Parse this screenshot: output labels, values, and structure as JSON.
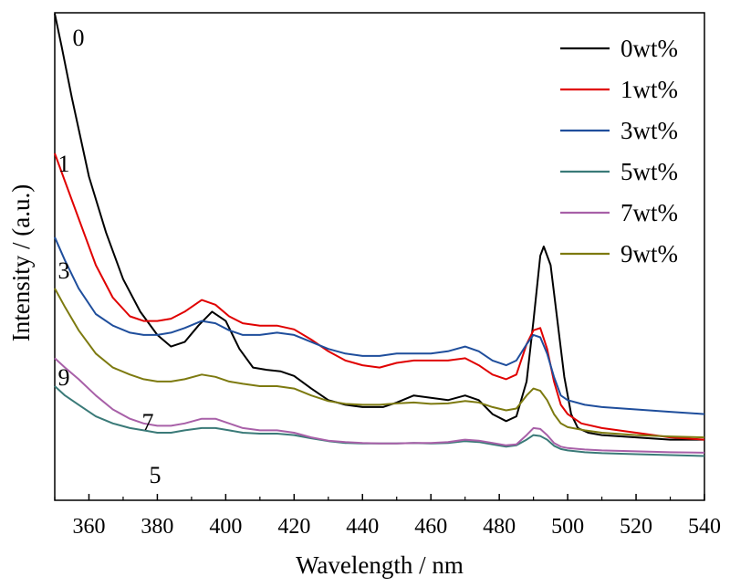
{
  "chart_data": {
    "type": "line",
    "title": "",
    "xlabel": "Wavelength / nm",
    "ylabel": "Intensity / (a.u.)",
    "xlim": [
      350,
      540
    ],
    "ylim": [
      0,
      1
    ],
    "x_ticks": [
      360,
      380,
      400,
      420,
      440,
      460,
      480,
      500,
      520,
      540
    ],
    "y_ticks_shown": false,
    "grid": false,
    "legend_position": "top-right",
    "series": [
      {
        "name": "0wt%",
        "label": "0",
        "color": "#000000",
        "points": [
          [
            350,
            1.0
          ],
          [
            352,
            0.93
          ],
          [
            355,
            0.82
          ],
          [
            360,
            0.65
          ],
          [
            365,
            0.53
          ],
          [
            370,
            0.43
          ],
          [
            375,
            0.36
          ],
          [
            380,
            0.31
          ],
          [
            384,
            0.285
          ],
          [
            388,
            0.295
          ],
          [
            392,
            0.33
          ],
          [
            396,
            0.36
          ],
          [
            400,
            0.34
          ],
          [
            404,
            0.28
          ],
          [
            408,
            0.24
          ],
          [
            412,
            0.235
          ],
          [
            416,
            0.232
          ],
          [
            420,
            0.222
          ],
          [
            425,
            0.195
          ],
          [
            430,
            0.17
          ],
          [
            435,
            0.16
          ],
          [
            440,
            0.155
          ],
          [
            446,
            0.155
          ],
          [
            450,
            0.165
          ],
          [
            455,
            0.18
          ],
          [
            460,
            0.175
          ],
          [
            465,
            0.17
          ],
          [
            470,
            0.18
          ],
          [
            474,
            0.17
          ],
          [
            478,
            0.14
          ],
          [
            482,
            0.125
          ],
          [
            485,
            0.135
          ],
          [
            488,
            0.21
          ],
          [
            490,
            0.34
          ],
          [
            492,
            0.48
          ],
          [
            493,
            0.5
          ],
          [
            495,
            0.46
          ],
          [
            497,
            0.34
          ],
          [
            499,
            0.22
          ],
          [
            501,
            0.14
          ],
          [
            503,
            0.11
          ],
          [
            506,
            0.1
          ],
          [
            510,
            0.095
          ],
          [
            520,
            0.09
          ],
          [
            530,
            0.085
          ],
          [
            540,
            0.085
          ]
        ]
      },
      {
        "name": "1wt%",
        "label": "1",
        "color": "#e00000",
        "points": [
          [
            350,
            0.7
          ],
          [
            353,
            0.64
          ],
          [
            357,
            0.56
          ],
          [
            362,
            0.46
          ],
          [
            367,
            0.39
          ],
          [
            372,
            0.35
          ],
          [
            376,
            0.34
          ],
          [
            380,
            0.34
          ],
          [
            384,
            0.345
          ],
          [
            388,
            0.36
          ],
          [
            393,
            0.385
          ],
          [
            397,
            0.375
          ],
          [
            401,
            0.35
          ],
          [
            405,
            0.335
          ],
          [
            410,
            0.33
          ],
          [
            415,
            0.33
          ],
          [
            420,
            0.322
          ],
          [
            425,
            0.3
          ],
          [
            430,
            0.275
          ],
          [
            435,
            0.255
          ],
          [
            440,
            0.245
          ],
          [
            445,
            0.24
          ],
          [
            450,
            0.25
          ],
          [
            455,
            0.255
          ],
          [
            460,
            0.255
          ],
          [
            465,
            0.255
          ],
          [
            470,
            0.26
          ],
          [
            474,
            0.245
          ],
          [
            478,
            0.225
          ],
          [
            482,
            0.215
          ],
          [
            485,
            0.225
          ],
          [
            488,
            0.29
          ],
          [
            490,
            0.32
          ],
          [
            492,
            0.325
          ],
          [
            494,
            0.28
          ],
          [
            496,
            0.21
          ],
          [
            498,
            0.16
          ],
          [
            500,
            0.14
          ],
          [
            504,
            0.12
          ],
          [
            510,
            0.11
          ],
          [
            520,
            0.1
          ],
          [
            530,
            0.09
          ],
          [
            540,
            0.085
          ]
        ]
      },
      {
        "name": "3wt%",
        "label": "3",
        "color": "#1f4e9c",
        "points": [
          [
            350,
            0.52
          ],
          [
            353,
            0.47
          ],
          [
            357,
            0.41
          ],
          [
            362,
            0.355
          ],
          [
            367,
            0.33
          ],
          [
            372,
            0.315
          ],
          [
            376,
            0.31
          ],
          [
            380,
            0.31
          ],
          [
            384,
            0.315
          ],
          [
            388,
            0.325
          ],
          [
            393,
            0.34
          ],
          [
            397,
            0.335
          ],
          [
            401,
            0.32
          ],
          [
            405,
            0.31
          ],
          [
            410,
            0.31
          ],
          [
            415,
            0.315
          ],
          [
            420,
            0.31
          ],
          [
            425,
            0.295
          ],
          [
            430,
            0.28
          ],
          [
            435,
            0.27
          ],
          [
            440,
            0.265
          ],
          [
            445,
            0.265
          ],
          [
            450,
            0.27
          ],
          [
            455,
            0.27
          ],
          [
            460,
            0.27
          ],
          [
            465,
            0.275
          ],
          [
            470,
            0.285
          ],
          [
            474,
            0.275
          ],
          [
            478,
            0.255
          ],
          [
            482,
            0.245
          ],
          [
            485,
            0.255
          ],
          [
            488,
            0.29
          ],
          [
            490,
            0.31
          ],
          [
            492,
            0.305
          ],
          [
            494,
            0.27
          ],
          [
            496,
            0.22
          ],
          [
            498,
            0.18
          ],
          [
            500,
            0.17
          ],
          [
            505,
            0.16
          ],
          [
            510,
            0.155
          ],
          [
            520,
            0.15
          ],
          [
            530,
            0.145
          ],
          [
            540,
            0.14
          ]
        ]
      },
      {
        "name": "5wt%",
        "label": "5",
        "color": "#3a7a78",
        "points": [
          [
            350,
            0.2
          ],
          [
            353,
            0.18
          ],
          [
            357,
            0.16
          ],
          [
            362,
            0.135
          ],
          [
            367,
            0.12
          ],
          [
            372,
            0.11
          ],
          [
            376,
            0.105
          ],
          [
            380,
            0.1
          ],
          [
            384,
            0.1
          ],
          [
            388,
            0.105
          ],
          [
            393,
            0.11
          ],
          [
            397,
            0.11
          ],
          [
            401,
            0.105
          ],
          [
            405,
            0.1
          ],
          [
            410,
            0.098
          ],
          [
            415,
            0.098
          ],
          [
            420,
            0.095
          ],
          [
            425,
            0.088
          ],
          [
            430,
            0.082
          ],
          [
            435,
            0.078
          ],
          [
            440,
            0.077
          ],
          [
            445,
            0.077
          ],
          [
            450,
            0.077
          ],
          [
            455,
            0.078
          ],
          [
            460,
            0.077
          ],
          [
            465,
            0.078
          ],
          [
            470,
            0.082
          ],
          [
            474,
            0.08
          ],
          [
            478,
            0.075
          ],
          [
            482,
            0.07
          ],
          [
            485,
            0.073
          ],
          [
            488,
            0.085
          ],
          [
            490,
            0.095
          ],
          [
            492,
            0.093
          ],
          [
            494,
            0.085
          ],
          [
            496,
            0.072
          ],
          [
            498,
            0.065
          ],
          [
            500,
            0.062
          ],
          [
            505,
            0.058
          ],
          [
            510,
            0.056
          ],
          [
            520,
            0.054
          ],
          [
            530,
            0.052
          ],
          [
            540,
            0.05
          ]
        ]
      },
      {
        "name": "7wt%",
        "label": "7",
        "color": "#a860a8",
        "points": [
          [
            350,
            0.26
          ],
          [
            353,
            0.24
          ],
          [
            357,
            0.215
          ],
          [
            362,
            0.18
          ],
          [
            367,
            0.15
          ],
          [
            372,
            0.13
          ],
          [
            376,
            0.12
          ],
          [
            380,
            0.115
          ],
          [
            384,
            0.115
          ],
          [
            388,
            0.12
          ],
          [
            393,
            0.13
          ],
          [
            397,
            0.13
          ],
          [
            401,
            0.12
          ],
          [
            405,
            0.11
          ],
          [
            410,
            0.105
          ],
          [
            415,
            0.105
          ],
          [
            420,
            0.1
          ],
          [
            425,
            0.09
          ],
          [
            430,
            0.083
          ],
          [
            435,
            0.08
          ],
          [
            440,
            0.078
          ],
          [
            445,
            0.077
          ],
          [
            450,
            0.077
          ],
          [
            455,
            0.078
          ],
          [
            460,
            0.078
          ],
          [
            465,
            0.08
          ],
          [
            470,
            0.085
          ],
          [
            474,
            0.083
          ],
          [
            478,
            0.078
          ],
          [
            482,
            0.073
          ],
          [
            485,
            0.075
          ],
          [
            488,
            0.095
          ],
          [
            490,
            0.11
          ],
          [
            492,
            0.108
          ],
          [
            494,
            0.095
          ],
          [
            496,
            0.078
          ],
          [
            498,
            0.07
          ],
          [
            500,
            0.067
          ],
          [
            505,
            0.064
          ],
          [
            510,
            0.062
          ],
          [
            520,
            0.06
          ],
          [
            530,
            0.058
          ],
          [
            540,
            0.057
          ]
        ]
      },
      {
        "name": "9wt%",
        "label": "9",
        "color": "#7d7a10",
        "points": [
          [
            350,
            0.41
          ],
          [
            353,
            0.37
          ],
          [
            357,
            0.32
          ],
          [
            362,
            0.27
          ],
          [
            367,
            0.24
          ],
          [
            372,
            0.225
          ],
          [
            376,
            0.215
          ],
          [
            380,
            0.21
          ],
          [
            384,
            0.21
          ],
          [
            388,
            0.215
          ],
          [
            393,
            0.225
          ],
          [
            397,
            0.22
          ],
          [
            401,
            0.21
          ],
          [
            405,
            0.205
          ],
          [
            410,
            0.2
          ],
          [
            415,
            0.2
          ],
          [
            420,
            0.195
          ],
          [
            425,
            0.18
          ],
          [
            430,
            0.168
          ],
          [
            435,
            0.162
          ],
          [
            440,
            0.16
          ],
          [
            445,
            0.16
          ],
          [
            450,
            0.163
          ],
          [
            455,
            0.165
          ],
          [
            460,
            0.162
          ],
          [
            465,
            0.163
          ],
          [
            470,
            0.168
          ],
          [
            474,
            0.165
          ],
          [
            478,
            0.155
          ],
          [
            482,
            0.148
          ],
          [
            485,
            0.152
          ],
          [
            488,
            0.18
          ],
          [
            490,
            0.195
          ],
          [
            492,
            0.19
          ],
          [
            494,
            0.17
          ],
          [
            496,
            0.14
          ],
          [
            498,
            0.12
          ],
          [
            500,
            0.112
          ],
          [
            505,
            0.105
          ],
          [
            510,
            0.1
          ],
          [
            520,
            0.095
          ],
          [
            530,
            0.092
          ],
          [
            540,
            0.09
          ]
        ]
      }
    ]
  }
}
